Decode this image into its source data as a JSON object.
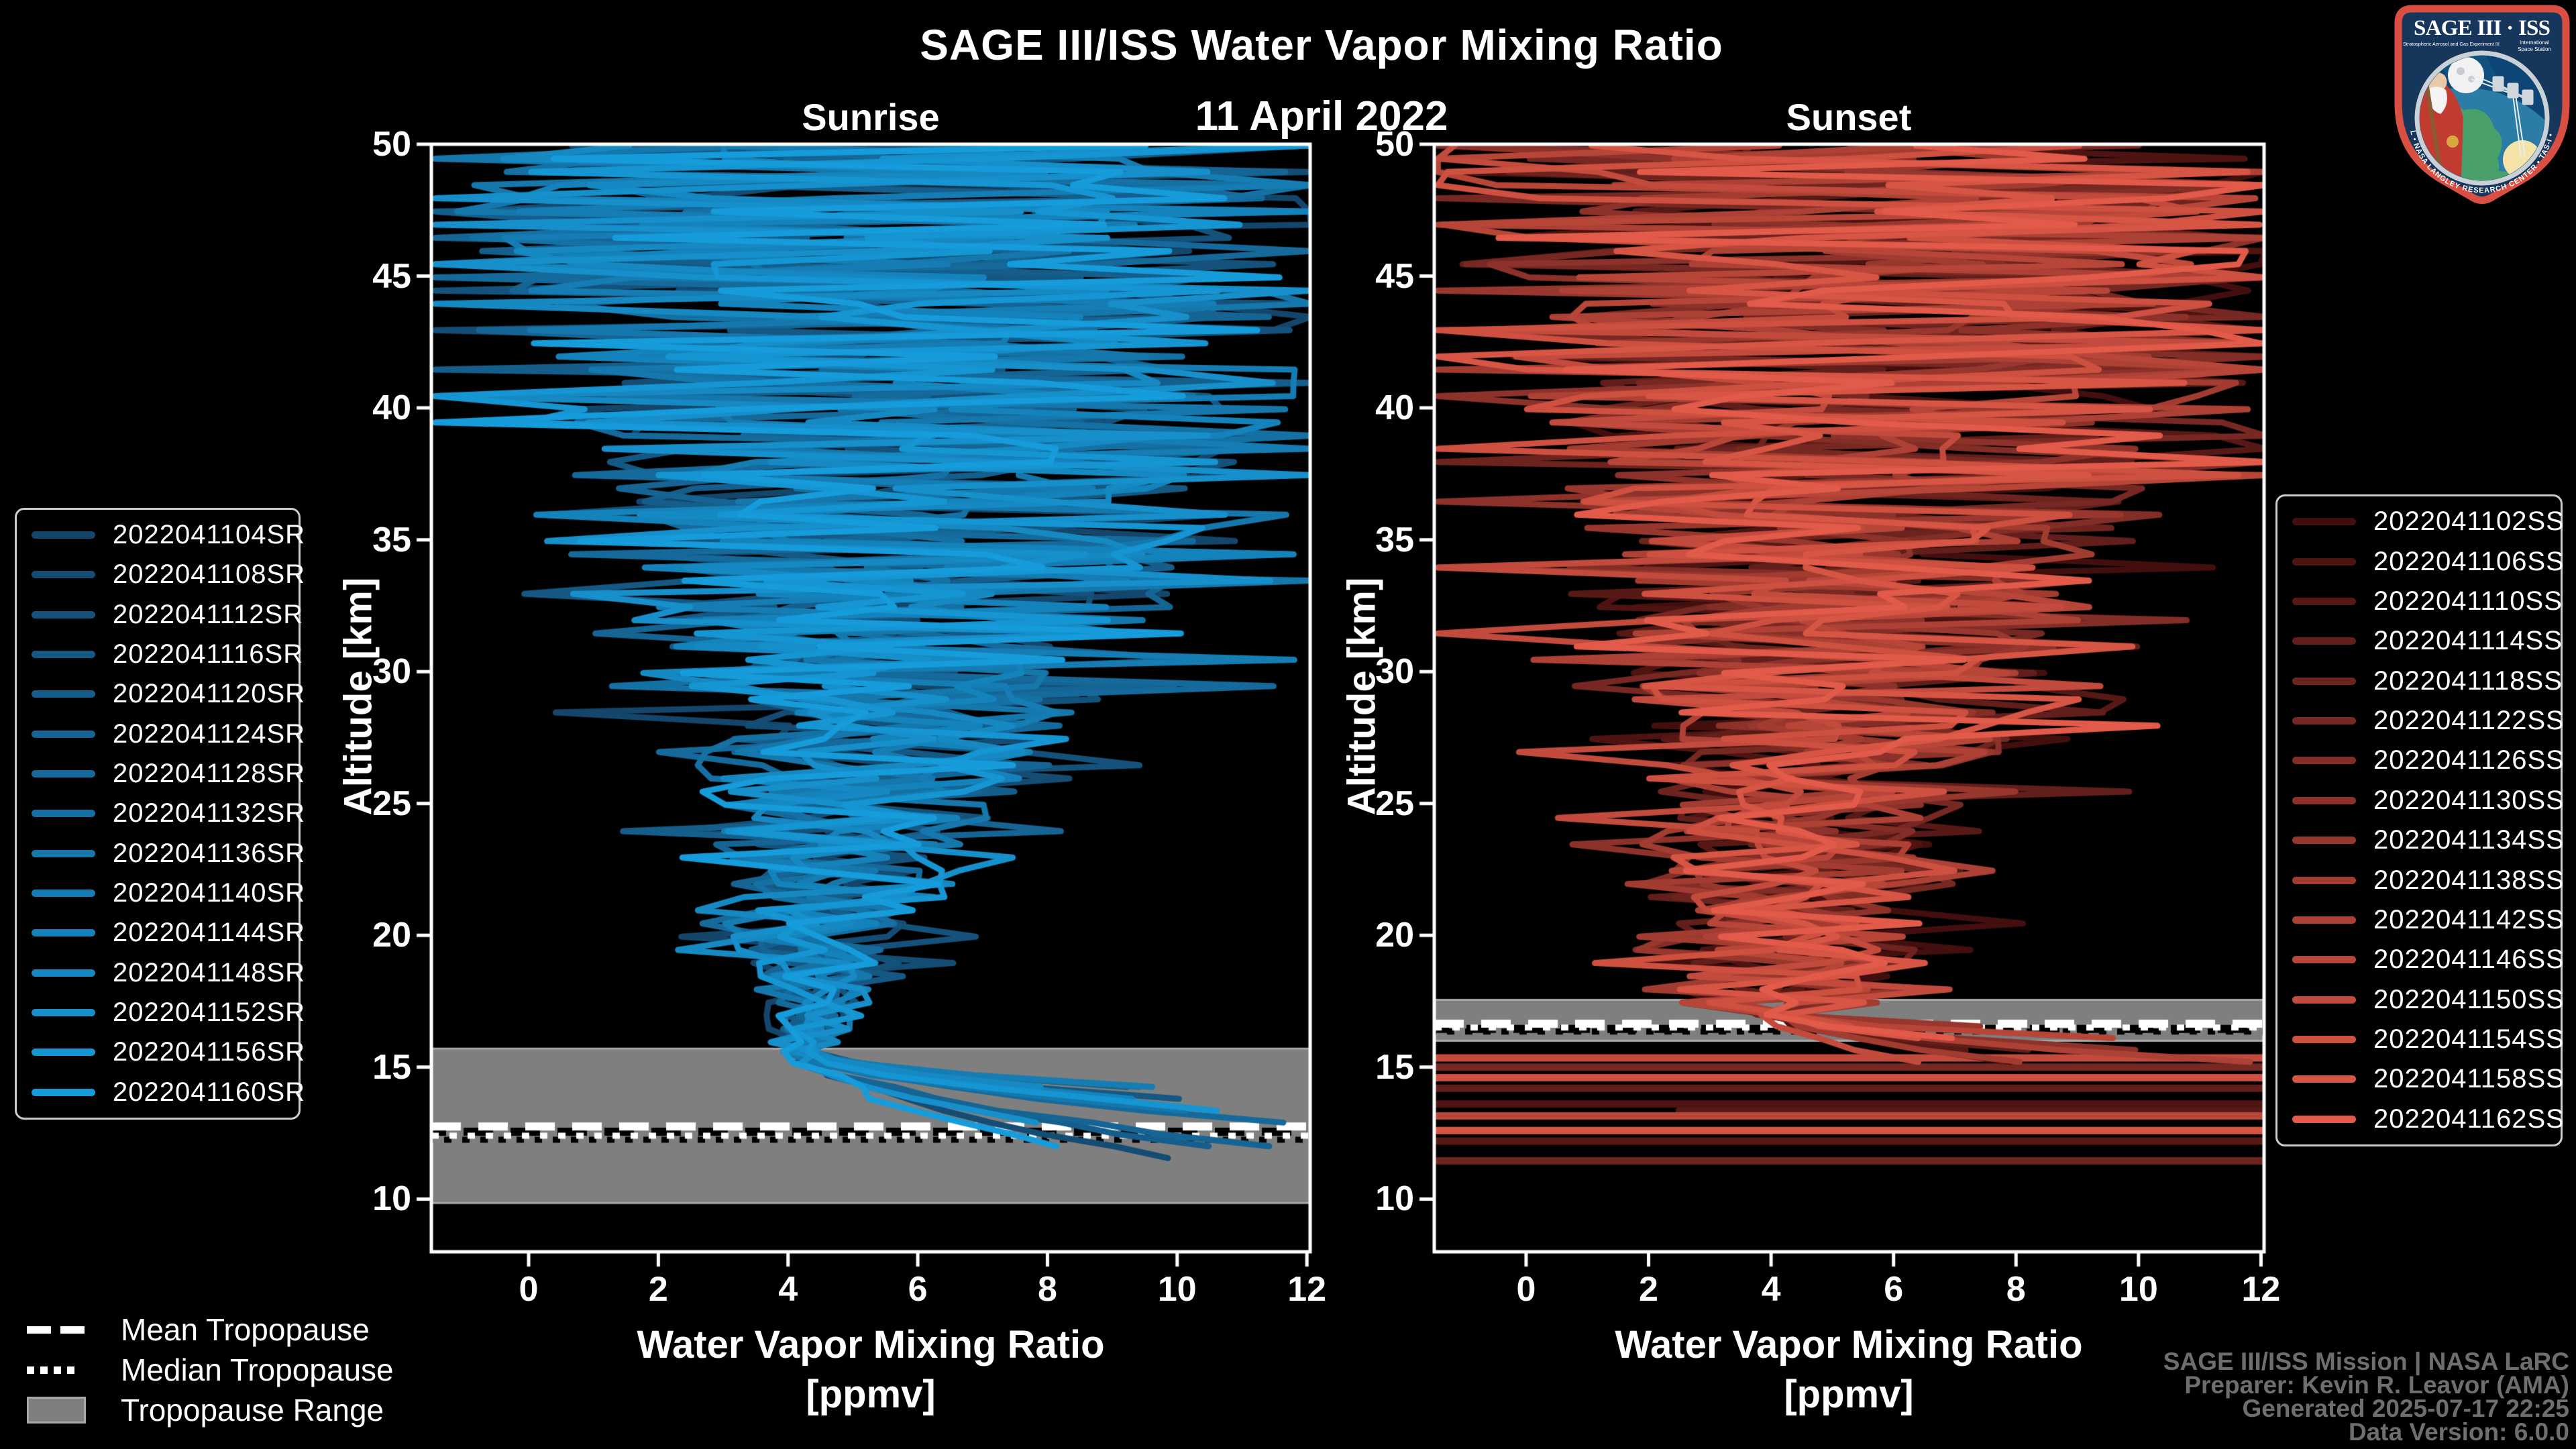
{
  "header": {
    "title": "SAGE III/ISS Water Vapor Mixing Ratio",
    "date": "11 April 2022"
  },
  "axes": {
    "ylabel": "Altitude [km]",
    "xlabel_line1": "Water Vapor Mixing Ratio",
    "xlabel_line2": "[ppmv]",
    "xticks": [
      0,
      2,
      4,
      6,
      8,
      10,
      12
    ],
    "yticks": [
      50,
      45,
      40,
      35,
      30,
      25,
      20,
      15,
      10
    ]
  },
  "tropopause_legend": {
    "mean": "Mean Tropopause",
    "median": "Median Tropopause",
    "range": "Tropopause Range"
  },
  "attribution": {
    "line1": "SAGE III/ISS Mission | NASA LaRC",
    "line2": "Preparer: Kevin R. Leavor (AMA)",
    "line3": "Generated 2025-07-17 22:25",
    "line4": "Data Version: 6.0.0"
  },
  "logo": {
    "title": "SAGE III · ISS",
    "subtitle_left": "Stratospheric Aerosol and Gas Experiment III",
    "subtitle_right_1": "International",
    "subtitle_right_2": "Space Station",
    "ring_text": "BALL • NASA LANGLEY RESEARCH CENTER • TAS-I • ESA"
  },
  "colors": {
    "background": "#000000",
    "spine": "#ffffff",
    "text": "#ffffff",
    "muted_text": "#6e6e6e",
    "band_fill": "#7f7f7f",
    "band_edge": "#a8a8a8",
    "legend_border": "#cccccc",
    "tropopause_line": "#ffffff",
    "tropopause_shadow": "#000000",
    "logo_red": "#d94f41",
    "logo_navy": "#16365c",
    "logo_space": "#0d4576",
    "logo_land": "#4aa06b",
    "logo_ocean": "#2b7ca6",
    "logo_sun": "#f5e3a7"
  },
  "chart_data": [
    {
      "type": "line",
      "panel": "Sunrise",
      "xlabel": "Water Vapor Mixing Ratio [ppmv]",
      "ylabel": "Altitude [km]",
      "xlim": [
        -1.5,
        12.05
      ],
      "ylim": [
        8,
        50
      ],
      "grid": false,
      "legend_position": "outside-left",
      "color_range": [
        "#14466b",
        "#169bdb"
      ],
      "series_names": [
        "2022041104SR",
        "2022041108SR",
        "2022041112SR",
        "2022041116SR",
        "2022041120SR",
        "2022041124SR",
        "2022041128SR",
        "2022041132SR",
        "2022041136SR",
        "2022041140SR",
        "2022041144SR",
        "2022041148SR",
        "2022041152SR",
        "2022041156SR",
        "2022041160SR"
      ],
      "profile_altitude_km": [
        50,
        48,
        46,
        44,
        42,
        40,
        38,
        36,
        34,
        32,
        30,
        28,
        26,
        24,
        22,
        20,
        18,
        16
      ],
      "mean_ppmv": [
        5.5,
        5.6,
        5.8,
        6.0,
        6.2,
        6.2,
        6.2,
        6.2,
        6.0,
        5.8,
        5.6,
        5.4,
        5.2,
        5.0,
        4.8,
        4.6,
        4.4,
        4.2
      ],
      "spread_ppmv": [
        7.0,
        7.0,
        6.6,
        6.3,
        6.0,
        5.6,
        5.1,
        4.6,
        4.1,
        3.7,
        3.3,
        2.9,
        2.5,
        2.1,
        1.7,
        1.3,
        0.8,
        0.5
      ],
      "lower_hook": {
        "start_km": 15.6,
        "end_km_range": [
          11.4,
          14.2
        ],
        "end_ppmv_range": [
          7.5,
          12.8
        ]
      },
      "tropopause": {
        "mean_km": 12.75,
        "median_km": 12.4,
        "range_km": [
          9.85,
          15.7
        ]
      }
    },
    {
      "type": "line",
      "panel": "Sunset",
      "xlabel": "Water Vapor Mixing Ratio [ppmv]",
      "ylabel": "Altitude [km]",
      "xlim": [
        -1.5,
        12.05
      ],
      "ylim": [
        8,
        50
      ],
      "grid": false,
      "legend_position": "outside-right",
      "color_range": [
        "#420f0e",
        "#e25a49"
      ],
      "series_names": [
        "2022041102SS",
        "2022041106SS",
        "2022041110SS",
        "2022041114SS",
        "2022041118SS",
        "2022041122SS",
        "2022041126SS",
        "2022041130SS",
        "2022041134SS",
        "2022041138SS",
        "2022041142SS",
        "2022041146SS",
        "2022041150SS",
        "2022041154SS",
        "2022041158SS",
        "2022041162SS"
      ],
      "profile_altitude_km": [
        50,
        48,
        46,
        44,
        42,
        40,
        38,
        36,
        34,
        32,
        30,
        28,
        26,
        24,
        22,
        20,
        18,
        16
      ],
      "mean_ppmv": [
        5.2,
        5.3,
        5.5,
        5.7,
        5.8,
        5.8,
        5.7,
        5.6,
        5.4,
        5.2,
        5.1,
        5.0,
        4.8,
        4.6,
        4.4,
        4.3,
        4.1,
        4.0
      ],
      "spread_ppmv": [
        7.0,
        7.0,
        6.8,
        6.5,
        6.2,
        5.8,
        5.3,
        4.8,
        4.3,
        3.9,
        3.5,
        3.1,
        2.7,
        2.3,
        2.0,
        1.8,
        1.7,
        1.6
      ],
      "lower_hook": {
        "start_km": 17.0,
        "end_km_range": [
          15.0,
          16.3
        ],
        "end_ppmv_range": [
          5.5,
          12.5
        ]
      },
      "flat_bars": [
        {
          "km": 15.35,
          "series": 12
        },
        {
          "km": 15.0,
          "series": 5
        },
        {
          "km": 14.6,
          "series": 13
        },
        {
          "km": 14.2,
          "series": 3
        },
        {
          "km": 13.6,
          "series": 1
        },
        {
          "km": 13.35,
          "series": 2,
          "x_start": 2.5
        },
        {
          "km": 13.15,
          "series": 11
        },
        {
          "km": 12.6,
          "series": 14
        },
        {
          "km": 12.2,
          "series": 2
        },
        {
          "km": 11.45,
          "series": 4
        }
      ],
      "tropopause": {
        "mean_km": 16.65,
        "median_km": 16.5,
        "range_km": [
          16.0,
          17.55
        ]
      }
    }
  ]
}
